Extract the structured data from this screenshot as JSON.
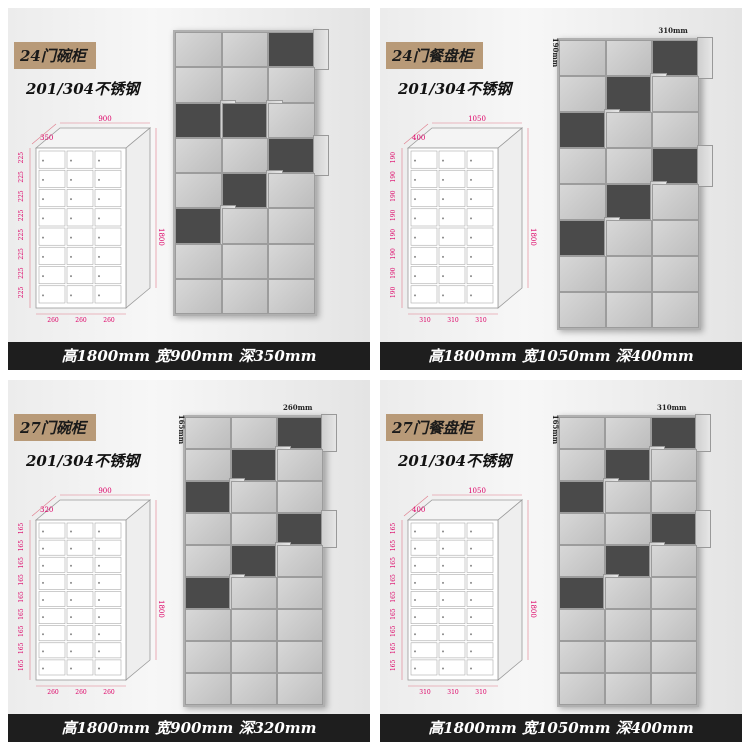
{
  "panels": [
    {
      "title": "24门碗柜",
      "material": "201/304不锈钢",
      "dims": "高1800mm 宽900mm 深350mm",
      "diagram": {
        "width": "900",
        "depth": "350",
        "height": "1800",
        "rows": 8,
        "row_label": "225",
        "cols": [
          "260",
          "260",
          "260"
        ]
      },
      "cabinet": {
        "rows": 8,
        "cols": 3,
        "open": [
          [
            0,
            2
          ],
          [
            2,
            0
          ],
          [
            2,
            1
          ],
          [
            3,
            2
          ],
          [
            4,
            1
          ],
          [
            5,
            0
          ]
        ],
        "width_label": "",
        "height_label": ""
      }
    },
    {
      "title": "24门餐盘柜",
      "material": "201/304不锈钢",
      "dims": "高1800mm 宽1050mm 深400mm",
      "diagram": {
        "width": "1050",
        "depth": "400",
        "height": "1800",
        "rows": 8,
        "row_label": "190",
        "cols": [
          "310",
          "310",
          "310"
        ]
      },
      "cabinet": {
        "rows": 8,
        "cols": 3,
        "open": [
          [
            0,
            2
          ],
          [
            1,
            1
          ],
          [
            2,
            0
          ],
          [
            3,
            2
          ],
          [
            4,
            1
          ],
          [
            5,
            0
          ]
        ],
        "width_label": "310mm",
        "height_label": "190mm"
      }
    },
    {
      "title": "27门碗柜",
      "material": "201/304不锈钢",
      "dims": "高1800mm 宽900mm 深320mm",
      "diagram": {
        "width": "900",
        "depth": "320",
        "height": "1800",
        "rows": 9,
        "row_label": "165",
        "cols": [
          "260",
          "260",
          "260"
        ]
      },
      "cabinet": {
        "rows": 9,
        "cols": 3,
        "open": [
          [
            0,
            2
          ],
          [
            1,
            1
          ],
          [
            2,
            0
          ],
          [
            3,
            2
          ],
          [
            4,
            1
          ],
          [
            5,
            0
          ]
        ],
        "width_label": "260mm",
        "height_label": "165mm"
      }
    },
    {
      "title": "27门餐盘柜",
      "material": "201/304不锈钢",
      "dims": "高1800mm 宽1050mm 深400mm",
      "diagram": {
        "width": "1050",
        "depth": "400",
        "height": "1800",
        "rows": 9,
        "row_label": "165",
        "cols": [
          "310",
          "310",
          "310"
        ]
      },
      "cabinet": {
        "rows": 9,
        "cols": 3,
        "open": [
          [
            0,
            2
          ],
          [
            1,
            1
          ],
          [
            2,
            0
          ],
          [
            3,
            2
          ],
          [
            4,
            1
          ],
          [
            5,
            0
          ]
        ],
        "width_label": "310mm",
        "height_label": "165mm"
      }
    }
  ]
}
